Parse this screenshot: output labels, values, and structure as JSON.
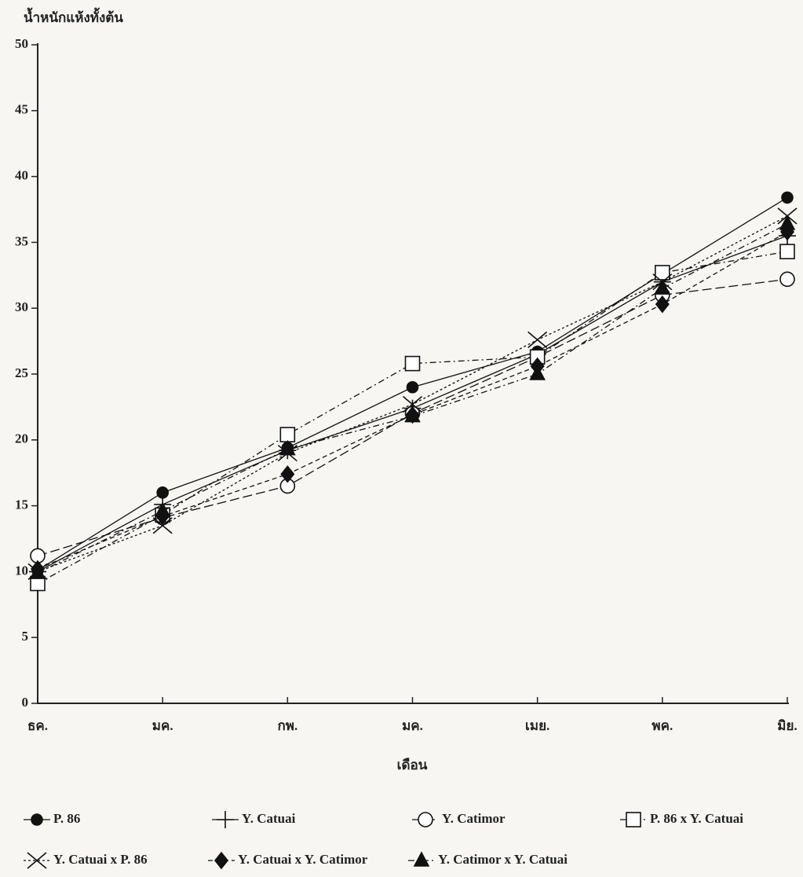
{
  "chart_data": {
    "type": "line",
    "y_label": "น้ำหนักแห้งทั้งต้น",
    "x_label": "เดือน",
    "categories": [
      "ธค.",
      "มค.",
      "กพ.",
      "มค.",
      "เมย.",
      "พค.",
      "มิย."
    ],
    "ylim": [
      0,
      50
    ],
    "yticks": [
      0,
      5,
      10,
      15,
      20,
      25,
      30,
      35,
      40,
      45,
      50
    ],
    "series": [
      {
        "name": "P. 86",
        "color": "#111111",
        "marker": "circle-filled",
        "dash": "solid",
        "values": [
          10.1,
          16.0,
          19.4,
          24.0,
          26.7,
          32.6,
          38.4
        ]
      },
      {
        "name": "Y. Catuai",
        "color": "#111111",
        "marker": "plus",
        "dash": "solid",
        "values": [
          10.0,
          15.1,
          19.2,
          22.4,
          26.5,
          32.0,
          35.5
        ]
      },
      {
        "name": "Y. Catimor",
        "color": "#111111",
        "marker": "circle-open",
        "dash": "long-dash",
        "values": [
          11.2,
          14.1,
          16.5,
          22.0,
          26.3,
          31.0,
          32.2
        ]
      },
      {
        "name": "P. 86 x Y. Catuai",
        "color": "#111111",
        "marker": "square",
        "dash": "dash-dot",
        "values": [
          9.1,
          14.3,
          20.4,
          25.8,
          26.3,
          32.7,
          34.3
        ]
      },
      {
        "name": "Y. Catuai x P. 86",
        "color": "#111111",
        "marker": "cross",
        "dash": "dot",
        "values": [
          10.0,
          13.5,
          19.0,
          22.7,
          27.6,
          32.0,
          37.0
        ]
      },
      {
        "name": "Y. Catuai x Y. Catimor",
        "color": "#111111",
        "marker": "diamond",
        "dash": "short-dash",
        "values": [
          10.2,
          14.2,
          17.4,
          21.9,
          25.6,
          30.3,
          35.8
        ]
      },
      {
        "name": "Y. Catimor x Y. Catuai",
        "color": "#111111",
        "marker": "triangle",
        "dash": "dash-dot",
        "values": [
          9.9,
          14.6,
          19.3,
          21.8,
          25.0,
          31.5,
          36.4
        ]
      }
    ]
  }
}
